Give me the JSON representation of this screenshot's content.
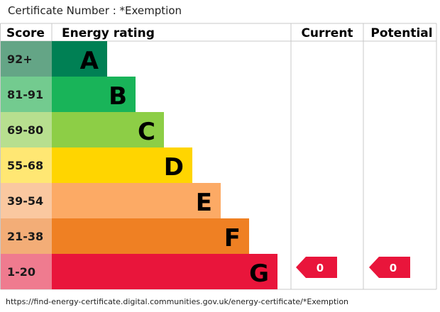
{
  "certificate": {
    "label": "Certificate Number : *Exemption"
  },
  "table_headers": {
    "score": "Score",
    "rating": "Energy rating",
    "current": "Current",
    "potential": "Potential"
  },
  "chart_data": {
    "type": "bar",
    "categories": [
      "A",
      "B",
      "C",
      "D",
      "E",
      "F",
      "G"
    ],
    "score_ranges": [
      "92+",
      "81-91",
      "69-80",
      "55-68",
      "39-54",
      "21-38",
      "1-20"
    ],
    "band_colors": [
      "#008054",
      "#19b459",
      "#8dce46",
      "#ffd500",
      "#fcaa65",
      "#ef8023",
      "#e9153b"
    ],
    "score_cell_colors": [
      "#64a586",
      "#73cb8f",
      "#b7df8f",
      "#ffe773",
      "#fac8a0",
      "#f3ad77",
      "#ef7b8f"
    ],
    "current": {
      "value": 0,
      "band": "G"
    },
    "potential": {
      "value": 0,
      "band": "G"
    },
    "indicator_color": "#e9153b"
  },
  "footer": {
    "url": "https://find-energy-certificate.digital.communities.gov.uk/energy-certificate/*Exemption"
  }
}
